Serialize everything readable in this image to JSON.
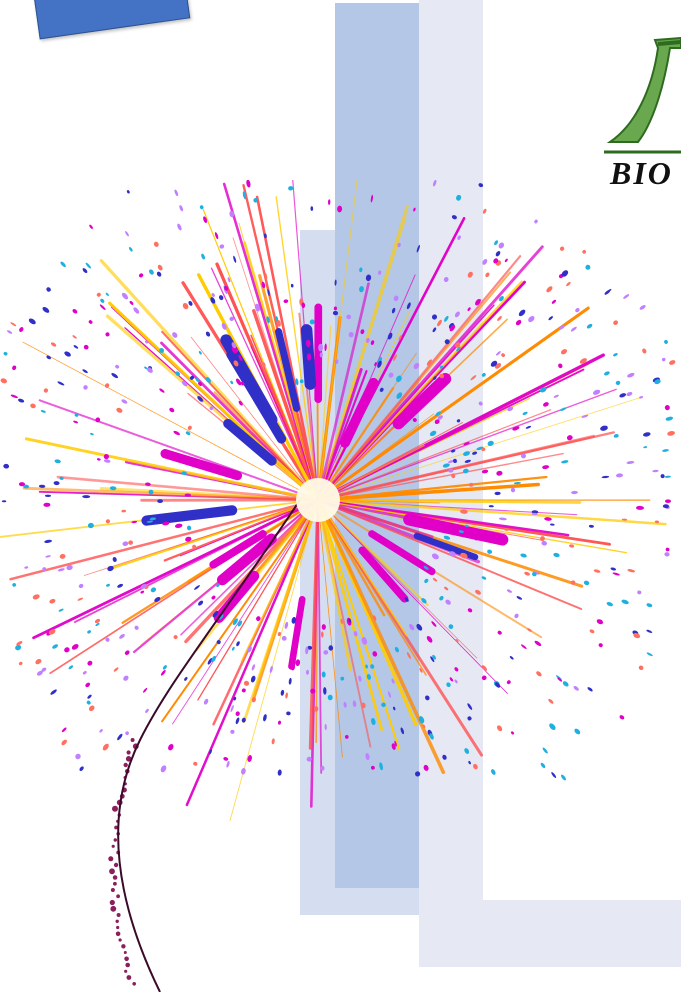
{
  "logo": {
    "text": "BIO",
    "mark": "green-leaf-mark",
    "colors": {
      "leaf": "#6aa84f",
      "leaf_dark": "#2e6b1f",
      "text": "#111111"
    }
  },
  "shapes": {
    "tab_color": "#4472c4",
    "panel_blue_color": "#b4c7e7",
    "panel_light_color": "#d5def0",
    "frame_color": "#e6e8f3"
  },
  "firework": {
    "name": "firework-burst",
    "palette": [
      "#ffcc00",
      "#ff8a00",
      "#ff4d4d",
      "#e000c8",
      "#3030c8",
      "#20b0e0",
      "#ff7060",
      "#c080ff"
    ]
  }
}
